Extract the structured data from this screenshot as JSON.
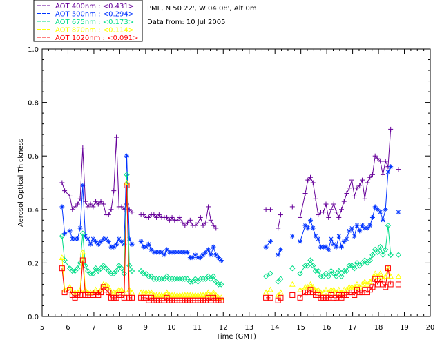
{
  "header": {
    "site": "PML, N 50 22', W 04 08', Alt 0m",
    "date": "Data from: 10 Jul 2005"
  },
  "chart_data": {
    "type": "line",
    "xlabel": "Time (GMT)",
    "ylabel": "Aerosol Optical Thickness",
    "xlim": [
      5,
      20
    ],
    "ylim": [
      0,
      1.0
    ],
    "xticks": [
      5,
      6,
      7,
      8,
      9,
      10,
      11,
      12,
      13,
      14,
      15,
      16,
      17,
      18,
      19,
      20
    ],
    "yticks": [
      "0.0",
      "0.2",
      "0.4",
      "0.6",
      "0.8",
      "1.0"
    ],
    "grid": false,
    "legend_position": "top-left",
    "x": [
      5.77,
      5.87,
      6.07,
      6.17,
      6.27,
      6.37,
      6.47,
      6.57,
      6.67,
      6.77,
      6.87,
      6.97,
      7.07,
      7.17,
      7.27,
      7.37,
      7.47,
      7.57,
      7.67,
      7.77,
      7.87,
      7.97,
      8.07,
      8.17,
      8.27,
      8.37,
      8.47,
      8.82,
      8.92,
      9.02,
      9.12,
      9.22,
      9.32,
      9.42,
      9.52,
      9.62,
      9.72,
      9.82,
      9.92,
      10.02,
      10.12,
      10.22,
      10.32,
      10.42,
      10.52,
      10.62,
      10.72,
      10.82,
      10.92,
      11.02,
      11.12,
      11.22,
      11.32,
      11.42,
      11.52,
      11.62,
      11.72,
      11.82,
      11.92,
      12.02,
      12.12,
      12.22,
      12.32,
      12.42,
      12.52,
      13.65,
      13.82,
      14.12,
      14.22,
      14.67,
      14.97,
      15.17,
      15.27,
      15.37,
      15.47,
      15.57,
      15.67,
      15.77,
      15.87,
      15.97,
      16.07,
      16.17,
      16.27,
      16.37,
      16.47,
      16.57,
      16.67,
      16.77,
      16.87,
      16.97,
      17.07,
      17.17,
      17.27,
      17.37,
      17.47,
      17.57,
      17.67,
      17.77,
      17.87,
      17.97,
      18.07,
      18.17,
      18.27,
      18.37,
      18.47,
      18.77
    ],
    "series": [
      {
        "name": "AOT  400nm : <0.431>",
        "color": "#660099",
        "marker": "plus",
        "values": [
          0.5,
          0.47,
          0.45,
          0.4,
          0.41,
          0.42,
          0.44,
          0.63,
          0.43,
          0.41,
          0.42,
          0.41,
          0.43,
          0.42,
          0.43,
          0.42,
          0.38,
          0.38,
          0.4,
          0.47,
          0.67,
          0.41,
          0.41,
          0.4,
          0.42,
          0.4,
          0.39,
          0.38,
          0.38,
          0.37,
          0.37,
          0.38,
          0.38,
          0.37,
          0.38,
          0.37,
          0.37,
          0.37,
          0.36,
          0.37,
          0.36,
          0.36,
          0.37,
          0.35,
          0.34,
          0.35,
          0.36,
          0.34,
          0.34,
          0.35,
          0.37,
          0.34,
          0.35,
          0.41,
          0.36,
          0.34,
          0.33,
          null,
          null,
          null,
          null,
          null,
          null,
          null,
          null,
          0.4,
          0.4,
          0.33,
          0.38,
          0.41,
          0.37,
          0.46,
          0.51,
          0.52,
          0.5,
          0.44,
          0.38,
          0.39,
          0.39,
          0.42,
          0.37,
          0.4,
          0.42,
          0.39,
          0.37,
          0.4,
          0.43,
          0.46,
          0.48,
          0.51,
          0.45,
          0.48,
          0.49,
          0.51,
          0.44,
          0.5,
          0.52,
          0.53,
          0.6,
          0.59,
          0.58,
          0.53,
          0.58,
          0.56,
          0.7,
          0.55
        ],
        "x_offset": 0
      },
      {
        "name": "AOT  500nm : <0.294>",
        "color": "#0033ff",
        "marker": "star",
        "values": [
          0.41,
          0.31,
          0.32,
          0.29,
          0.29,
          0.29,
          0.33,
          0.49,
          0.3,
          0.29,
          0.27,
          0.29,
          0.28,
          0.27,
          0.28,
          0.29,
          0.29,
          0.28,
          0.26,
          0.26,
          0.27,
          0.29,
          0.28,
          0.27,
          0.6,
          0.29,
          0.27,
          0.28,
          0.26,
          0.26,
          0.27,
          0.25,
          0.24,
          0.24,
          0.24,
          0.24,
          0.23,
          0.25,
          0.24,
          0.24,
          0.24,
          0.24,
          0.24,
          0.24,
          0.24,
          0.24,
          0.22,
          0.22,
          0.23,
          0.22,
          0.22,
          0.23,
          0.24,
          0.25,
          0.23,
          0.26,
          0.23,
          0.22,
          0.21,
          null,
          null,
          null,
          null,
          null,
          null,
          0.26,
          0.28,
          0.23,
          0.25,
          0.3,
          0.28,
          0.34,
          0.33,
          0.36,
          0.33,
          0.3,
          0.29,
          0.26,
          0.26,
          0.26,
          0.25,
          0.29,
          0.27,
          0.26,
          0.3,
          0.26,
          0.28,
          0.29,
          0.32,
          0.33,
          0.3,
          0.34,
          0.32,
          0.34,
          0.33,
          0.33,
          0.34,
          0.37,
          0.41,
          0.4,
          0.39,
          0.36,
          0.4,
          0.54,
          0.56,
          0.39
        ],
        "x_offset": 0
      },
      {
        "name": "AOT  675nm : <0.173>",
        "color": "#00dd88",
        "marker": "diamond",
        "values": [
          0.3,
          0.21,
          0.18,
          0.17,
          0.17,
          0.18,
          0.2,
          0.31,
          0.19,
          0.17,
          0.16,
          0.16,
          0.18,
          0.17,
          0.18,
          0.19,
          0.18,
          0.17,
          0.16,
          0.16,
          0.17,
          0.19,
          0.18,
          0.16,
          0.53,
          0.19,
          0.17,
          0.17,
          0.16,
          0.16,
          0.15,
          0.15,
          0.14,
          0.14,
          0.14,
          0.14,
          0.14,
          0.15,
          0.14,
          0.14,
          0.14,
          0.14,
          0.14,
          0.14,
          0.14,
          0.14,
          0.13,
          0.13,
          0.14,
          0.13,
          0.14,
          0.14,
          0.14,
          0.15,
          0.14,
          0.15,
          0.13,
          0.12,
          0.12,
          null,
          null,
          null,
          null,
          null,
          null,
          0.15,
          0.16,
          0.13,
          0.14,
          0.18,
          0.16,
          0.19,
          0.19,
          0.21,
          0.19,
          0.17,
          0.17,
          0.15,
          0.15,
          0.16,
          0.15,
          0.17,
          0.16,
          0.15,
          0.17,
          0.15,
          0.17,
          0.17,
          0.19,
          0.19,
          0.18,
          0.2,
          0.19,
          0.2,
          0.21,
          0.2,
          0.21,
          0.23,
          0.25,
          0.24,
          0.26,
          0.23,
          0.25,
          0.34,
          0.23,
          0.23
        ],
        "x_offset": 0
      },
      {
        "name": "AOT  870nm : <0.114>",
        "color": "#ffff00",
        "marker": "triangle",
        "values": [
          0.22,
          0.1,
          0.11,
          0.09,
          0.09,
          0.09,
          0.1,
          0.24,
          0.1,
          0.09,
          0.09,
          0.09,
          0.1,
          0.09,
          0.1,
          0.12,
          0.12,
          0.11,
          0.09,
          0.09,
          0.09,
          0.1,
          0.1,
          0.09,
          0.5,
          0.1,
          0.09,
          0.09,
          0.09,
          0.09,
          0.09,
          0.09,
          0.08,
          0.08,
          0.08,
          0.08,
          0.08,
          0.09,
          0.08,
          0.08,
          0.08,
          0.08,
          0.08,
          0.08,
          0.08,
          0.08,
          0.08,
          0.08,
          0.08,
          0.08,
          0.08,
          0.08,
          0.08,
          0.09,
          0.08,
          0.09,
          0.08,
          0.07,
          0.07,
          null,
          null,
          null,
          null,
          null,
          null,
          0.09,
          0.1,
          0.08,
          0.09,
          0.12,
          0.1,
          0.11,
          0.11,
          0.12,
          0.11,
          0.1,
          0.1,
          0.09,
          0.09,
          0.1,
          0.09,
          0.1,
          0.1,
          0.09,
          0.1,
          0.09,
          0.1,
          0.1,
          0.11,
          0.11,
          0.11,
          0.12,
          0.11,
          0.12,
          0.13,
          0.12,
          0.13,
          0.14,
          0.16,
          0.15,
          0.16,
          0.14,
          0.15,
          0.18,
          0.15,
          0.15
        ],
        "x_offset": 0
      },
      {
        "name": "AOT 1020nm : <0.091>",
        "color": "#ff0000",
        "marker": "square",
        "values": [
          0.18,
          0.09,
          0.1,
          0.08,
          0.07,
          0.08,
          0.08,
          0.21,
          0.08,
          0.08,
          0.08,
          0.08,
          0.09,
          0.08,
          0.09,
          0.11,
          0.1,
          0.09,
          0.07,
          0.07,
          0.07,
          0.08,
          0.08,
          0.07,
          0.49,
          0.07,
          0.07,
          0.07,
          0.07,
          0.07,
          0.06,
          0.07,
          0.06,
          0.06,
          0.06,
          0.06,
          0.06,
          0.07,
          0.06,
          0.06,
          0.06,
          0.06,
          0.06,
          0.06,
          0.06,
          0.06,
          0.06,
          0.06,
          0.06,
          0.06,
          0.06,
          0.06,
          0.06,
          0.07,
          0.06,
          0.07,
          0.06,
          0.06,
          0.06,
          null,
          null,
          null,
          null,
          null,
          null,
          0.07,
          0.07,
          0.06,
          0.07,
          0.08,
          0.07,
          0.09,
          0.09,
          0.1,
          0.09,
          0.08,
          0.08,
          0.07,
          0.07,
          0.07,
          0.07,
          0.08,
          0.07,
          0.07,
          0.08,
          0.07,
          0.08,
          0.08,
          0.09,
          0.09,
          0.08,
          0.1,
          0.09,
          0.09,
          0.1,
          0.09,
          0.1,
          0.11,
          0.14,
          0.12,
          0.14,
          0.12,
          0.11,
          0.18,
          0.12,
          0.12
        ],
        "x_offset": 0
      }
    ]
  }
}
